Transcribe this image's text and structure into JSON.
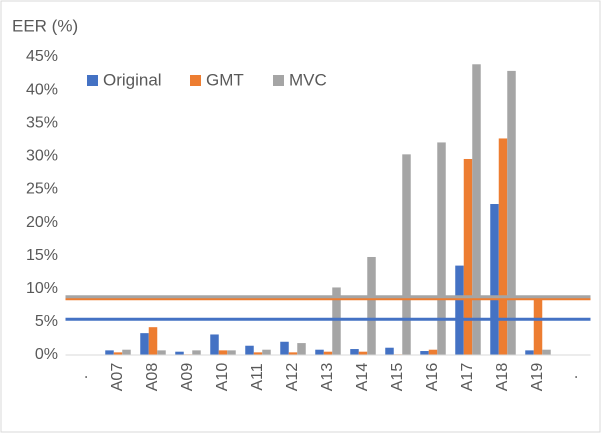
{
  "chart_data": {
    "type": "bar",
    "y_axis_title": "EER (%)",
    "categories": [
      ".",
      "A07",
      "A08",
      "A09",
      "A10",
      "A11",
      "A12",
      "A13",
      "A14",
      "A15",
      "A16",
      "A17",
      "A18",
      "A19",
      "."
    ],
    "series": [
      {
        "name": "Original",
        "color": "#4472c4",
        "values": [
          null,
          0.7,
          3.3,
          0.5,
          3.1,
          1.4,
          2.0,
          0.8,
          0.9,
          1.1,
          0.6,
          13.5,
          22.8,
          0.7,
          null
        ]
      },
      {
        "name": "GMT",
        "color": "#ed7d31",
        "values": [
          null,
          0.4,
          4.2,
          0.1,
          0.7,
          0.4,
          0.4,
          0.5,
          0.5,
          0.1,
          0.8,
          29.6,
          32.7,
          8.5,
          null
        ]
      },
      {
        "name": "MVC",
        "color": "#a5a5a5",
        "values": [
          null,
          0.8,
          0.7,
          0.7,
          0.7,
          0.8,
          1.8,
          10.2,
          14.8,
          30.3,
          32.1,
          43.9,
          42.9,
          0.8,
          null
        ]
      }
    ],
    "reference_lines": [
      {
        "value": 5.4,
        "color": "#4472c4"
      },
      {
        "value": 8.5,
        "color": "#ed7d31"
      },
      {
        "value": 8.8,
        "color": "#a5a5a5"
      }
    ],
    "ylim": [
      0,
      45
    ],
    "yticks": [
      {
        "value": 0,
        "label": "0%"
      },
      {
        "value": 5,
        "label": "5%"
      },
      {
        "value": 10,
        "label": "10%"
      },
      {
        "value": 15,
        "label": "15%"
      },
      {
        "value": 20,
        "label": "20%"
      },
      {
        "value": 25,
        "label": "25%"
      },
      {
        "value": 30,
        "label": "30%"
      },
      {
        "value": 35,
        "label": "35%"
      },
      {
        "value": 40,
        "label": "40%"
      },
      {
        "value": 45,
        "label": "45%"
      }
    ],
    "grid": false,
    "legend_position": "top-left"
  }
}
